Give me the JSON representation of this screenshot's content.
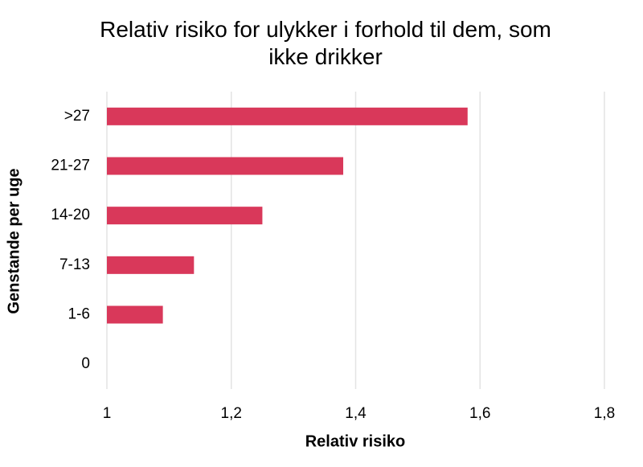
{
  "chart_data": {
    "type": "bar",
    "orientation": "horizontal",
    "title": "Relativ risiko for ulykker i forhold til dem, som ikke drikker",
    "x_label": "Relativ risiko",
    "y_label": "Genstande per uge",
    "categories": [
      ">27",
      "21-27",
      "14-20",
      "7-13",
      "1-6",
      "0"
    ],
    "values": [
      1.58,
      1.38,
      1.25,
      1.14,
      1.09,
      1
    ],
    "color": "#d9385a",
    "xlim": [
      1,
      1.8
    ],
    "xticks": [
      1,
      {
        "value": 1.2,
        "label": "1,2"
      },
      {
        "value": 1.4,
        "label": "1,4"
      },
      {
        "value": 1.6,
        "label": "1,6"
      },
      {
        "value": 1.8,
        "label": "1,8"
      }
    ],
    "grid": true
  }
}
